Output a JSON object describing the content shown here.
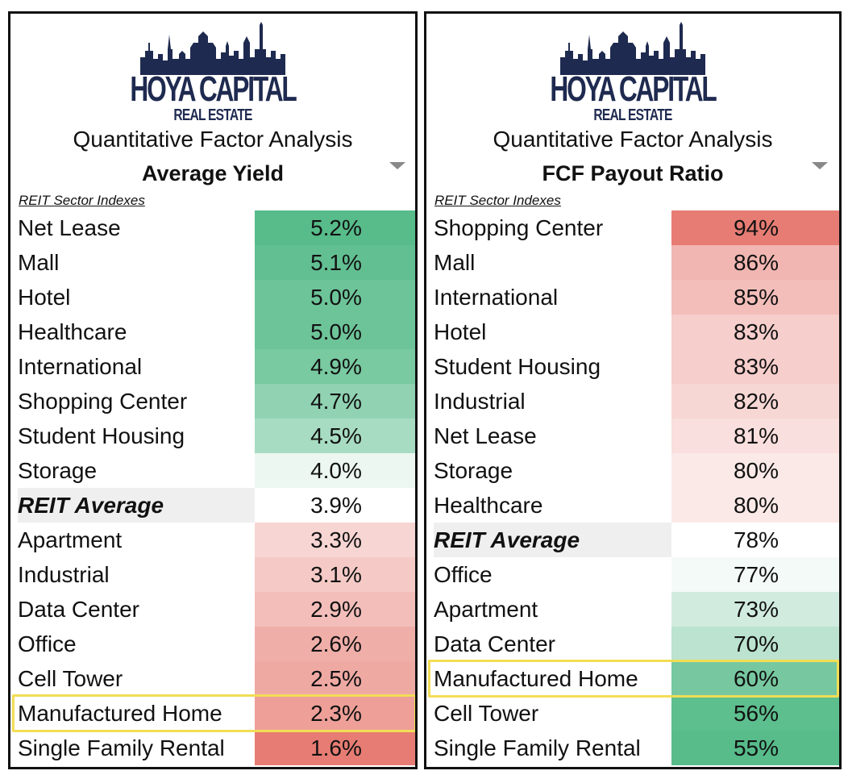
{
  "brand": {
    "line1": "HOYA CAPITAL",
    "line2": "REAL ESTATE"
  },
  "colors": {
    "brand_navy": "#1f2a50",
    "positive": "#57bb8a",
    "neutral": "#ffffff",
    "negative": "#e67c73",
    "highlight": "#f2dd55",
    "avg_row": "#efefef"
  },
  "chart_data": [
    {
      "type": "table",
      "subtitle": "Quantitative Factor Analysis",
      "title": "Average Yield",
      "section_label": "REIT Sector Indexes",
      "unit": "%",
      "scale": {
        "high_color": "positive",
        "low_color": "negative",
        "midpoint": 3.9
      },
      "highlighted": "Manufactured Home",
      "average_label": "REIT Average",
      "rows": [
        {
          "name": "Net Lease",
          "value": 5.2,
          "label": "5.2%"
        },
        {
          "name": "Mall",
          "value": 5.1,
          "label": "5.1%"
        },
        {
          "name": "Hotel",
          "value": 5.0,
          "label": "5.0%"
        },
        {
          "name": "Healthcare",
          "value": 5.0,
          "label": "5.0%"
        },
        {
          "name": "International",
          "value": 4.9,
          "label": "4.9%"
        },
        {
          "name": "Shopping Center",
          "value": 4.7,
          "label": "4.7%"
        },
        {
          "name": "Student Housing",
          "value": 4.5,
          "label": "4.5%"
        },
        {
          "name": "Storage",
          "value": 4.0,
          "label": "4.0%"
        },
        {
          "name": "REIT Average",
          "value": 3.9,
          "label": "3.9%"
        },
        {
          "name": "Apartment",
          "value": 3.3,
          "label": "3.3%"
        },
        {
          "name": "Industrial",
          "value": 3.1,
          "label": "3.1%"
        },
        {
          "name": "Data Center",
          "value": 2.9,
          "label": "2.9%"
        },
        {
          "name": "Office",
          "value": 2.6,
          "label": "2.6%"
        },
        {
          "name": "Cell Tower",
          "value": 2.5,
          "label": "2.5%"
        },
        {
          "name": "Manufactured Home",
          "value": 2.3,
          "label": "2.3%"
        },
        {
          "name": "Single Family Rental",
          "value": 1.6,
          "label": "1.6%"
        }
      ]
    },
    {
      "type": "table",
      "subtitle": "Quantitative Factor Analysis",
      "title": "FCF Payout Ratio",
      "section_label": "REIT Sector Indexes",
      "unit": "%",
      "scale": {
        "high_color": "negative",
        "low_color": "positive",
        "midpoint": 78
      },
      "highlighted": "Manufactured Home",
      "average_label": "REIT Average",
      "rows": [
        {
          "name": "Shopping Center",
          "value": 94,
          "label": "94%"
        },
        {
          "name": "Mall",
          "value": 86,
          "label": "86%"
        },
        {
          "name": "International",
          "value": 85,
          "label": "85%"
        },
        {
          "name": "Hotel",
          "value": 83,
          "label": "83%"
        },
        {
          "name": "Student Housing",
          "value": 83,
          "label": "83%"
        },
        {
          "name": "Industrial",
          "value": 82,
          "label": "82%"
        },
        {
          "name": "Net Lease",
          "value": 81,
          "label": "81%"
        },
        {
          "name": "Storage",
          "value": 80,
          "label": "80%"
        },
        {
          "name": "Healthcare",
          "value": 80,
          "label": "80%"
        },
        {
          "name": "REIT Average",
          "value": 78,
          "label": "78%"
        },
        {
          "name": "Office",
          "value": 77,
          "label": "77%"
        },
        {
          "name": "Apartment",
          "value": 73,
          "label": "73%"
        },
        {
          "name": "Data Center",
          "value": 70,
          "label": "70%"
        },
        {
          "name": "Manufactured Home",
          "value": 60,
          "label": "60%"
        },
        {
          "name": "Cell Tower",
          "value": 56,
          "label": "56%"
        },
        {
          "name": "Single Family Rental",
          "value": 55,
          "label": "55%"
        }
      ]
    }
  ]
}
